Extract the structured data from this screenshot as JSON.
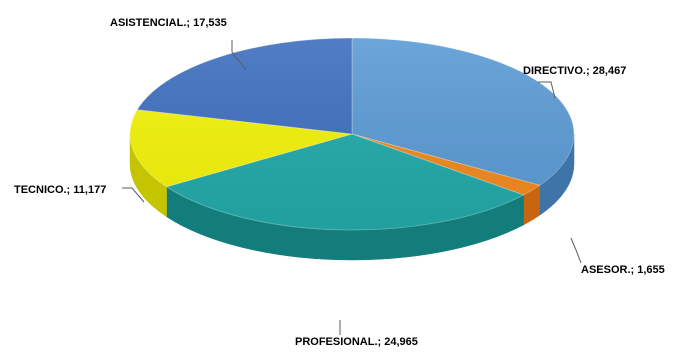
{
  "chart_data": {
    "type": "pie",
    "style": "3d",
    "slices": [
      {
        "label": "DIRECTIVO.; 28,467",
        "category": "DIRECTIVO.",
        "value": 28467,
        "color": "#5b9bd5",
        "side_color": "#3f74a8"
      },
      {
        "label": "ASESOR.; 1,655",
        "category": "ASESOR.",
        "value": 1655,
        "color": "#f28a1e",
        "side_color": "#c76510"
      },
      {
        "label": "PROFESIONAL.; 24,965",
        "category": "PROFESIONAL.",
        "value": 24965,
        "color": "#22aaa9",
        "side_color": "#137d7c"
      },
      {
        "label": "TECNICO.; 11,177",
        "category": "TECNICO.",
        "value": 11177,
        "color": "#f4f40a",
        "side_color": "#c4c400"
      },
      {
        "label": "ASISTENCIAL.; 17,535",
        "category": "ASISTENCIAL.",
        "value": 17535,
        "color": "#3e6fbf",
        "side_color": "#2b4f8c"
      }
    ]
  }
}
